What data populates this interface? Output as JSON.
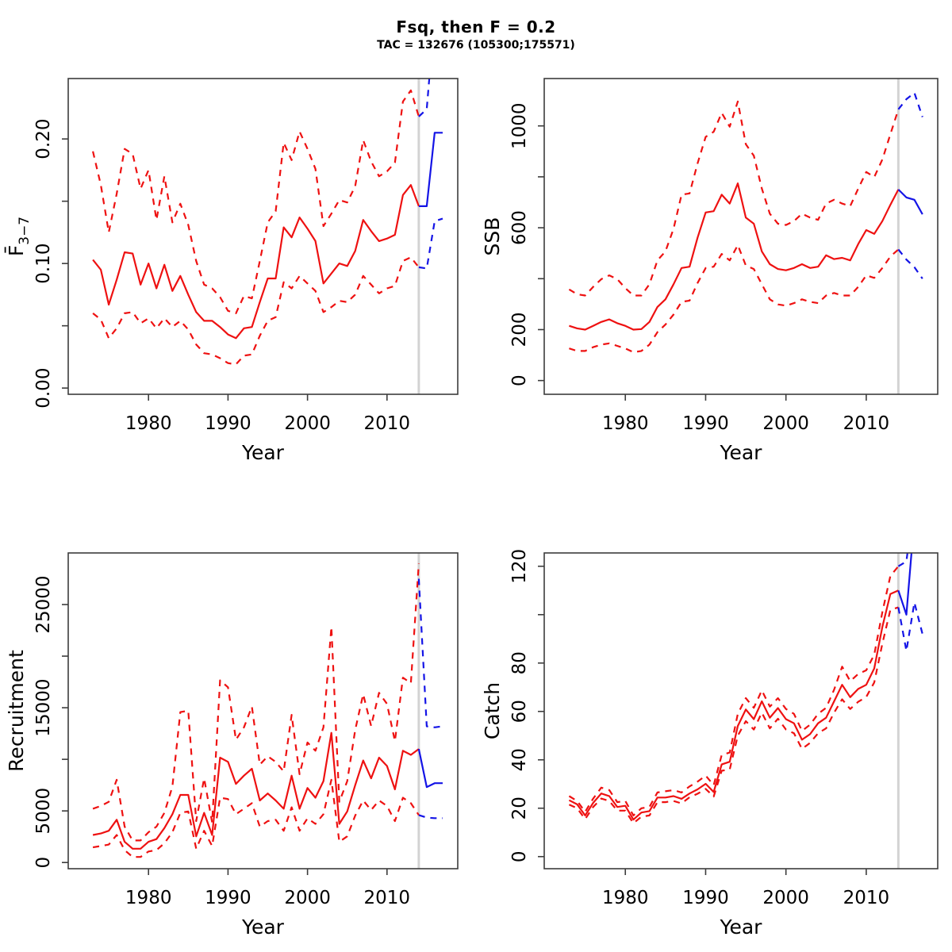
{
  "header": {
    "title": "Fsq, then F = 0.2",
    "subtitle": "TAC = 132676 (105300;175571)"
  },
  "colors": {
    "historic": "#ee1111",
    "projection": "#1414e6",
    "divider": "#d3d3d3",
    "frame": "#3c3c3c"
  },
  "chart_data": [
    {
      "key": "fbar",
      "type": "line",
      "xlabel": "Year",
      "ylabel": {
        "main": "F̄",
        "sub": "3−7"
      },
      "xlim": [
        1969.9,
        2018.9
      ],
      "ylim": [
        -0.005,
        0.2485
      ],
      "x_ticks": [
        1980,
        1990,
        2000,
        2010
      ],
      "y_ticks": [
        {
          "v": 0,
          "label": "0.00"
        },
        {
          "v": 0.05,
          "label": ""
        },
        {
          "v": 0.1,
          "label": "0.10"
        },
        {
          "v": 0.15,
          "label": ""
        },
        {
          "v": 0.2,
          "label": "0.20"
        }
      ],
      "divider_year": 2014,
      "historic": {
        "years_start": 1973,
        "median": [
          0.103,
          0.095,
          0.067,
          0.087,
          0.109,
          0.108,
          0.083,
          0.1,
          0.08,
          0.099,
          0.078,
          0.09,
          0.075,
          0.061,
          0.054,
          0.054,
          0.049,
          0.043,
          0.04,
          0.048,
          0.049,
          0.069,
          0.088,
          0.088,
          0.129,
          0.121,
          0.137,
          0.128,
          0.118,
          0.084,
          0.092,
          0.1,
          0.098,
          0.11,
          0.135,
          0.126,
          0.118,
          0.12,
          0.123,
          0.155,
          0.163,
          0.146
        ],
        "lower": [
          0.06,
          0.055,
          0.04,
          0.048,
          0.06,
          0.061,
          0.052,
          0.056,
          0.048,
          0.056,
          0.049,
          0.054,
          0.047,
          0.035,
          0.028,
          0.027,
          0.024,
          0.02,
          0.019,
          0.026,
          0.027,
          0.042,
          0.054,
          0.057,
          0.085,
          0.08,
          0.09,
          0.084,
          0.078,
          0.061,
          0.065,
          0.07,
          0.069,
          0.075,
          0.09,
          0.083,
          0.076,
          0.08,
          0.082,
          0.102,
          0.105,
          0.097
        ],
        "upper": [
          0.19,
          0.163,
          0.125,
          0.156,
          0.192,
          0.188,
          0.16,
          0.175,
          0.135,
          0.17,
          0.133,
          0.148,
          0.131,
          0.102,
          0.083,
          0.08,
          0.073,
          0.062,
          0.06,
          0.074,
          0.072,
          0.102,
          0.133,
          0.142,
          0.197,
          0.183,
          0.206,
          0.192,
          0.176,
          0.13,
          0.14,
          0.151,
          0.149,
          0.162,
          0.199,
          0.182,
          0.17,
          0.174,
          0.181,
          0.23,
          0.239,
          0.218
        ]
      },
      "projection": {
        "years_start": 2014,
        "median": [
          0.146,
          0.146,
          0.205,
          0.205
        ],
        "lower": [
          0.097,
          0.096,
          0.134,
          0.136
        ],
        "upper": [
          0.218,
          0.224,
          0.3,
          0.3
        ]
      }
    },
    {
      "key": "ssb",
      "type": "line",
      "xlabel": "Year",
      "ylabel": {
        "main": "SSB",
        "sub": ""
      },
      "xlim": [
        1969.9,
        2018.9
      ],
      "ylim": [
        -54,
        1186
      ],
      "x_ticks": [
        1980,
        1990,
        2000,
        2010
      ],
      "y_ticks": [
        {
          "v": 0,
          "label": "0"
        },
        {
          "v": 200,
          "label": "200"
        },
        {
          "v": 400,
          "label": ""
        },
        {
          "v": 600,
          "label": "600"
        },
        {
          "v": 800,
          "label": ""
        },
        {
          "v": 1000,
          "label": "1000"
        }
      ],
      "divider_year": 2014,
      "historic": {
        "years_start": 1973,
        "median": [
          215,
          205,
          200,
          215,
          230,
          240,
          225,
          215,
          200,
          202,
          230,
          289,
          319,
          378,
          442,
          447,
          561,
          660,
          665,
          730,
          695,
          774,
          640,
          616,
          507,
          457,
          438,
          433,
          442,
          457,
          442,
          447,
          492,
          477,
          482,
          472,
          536,
          591,
          576,
          626,
          690,
          750
        ],
        "lower": [
          126,
          116,
          116,
          131,
          141,
          146,
          136,
          126,
          111,
          116,
          141,
          190,
          220,
          259,
          309,
          314,
          383,
          442,
          447,
          497,
          472,
          532,
          452,
          438,
          378,
          319,
          299,
          294,
          304,
          319,
          309,
          304,
          334,
          344,
          334,
          334,
          368,
          413,
          403,
          442,
          487,
          515
        ],
        "upper": [
          358,
          339,
          334,
          368,
          398,
          413,
          398,
          363,
          334,
          334,
          378,
          472,
          507,
          596,
          730,
          735,
          853,
          957,
          977,
          1051,
          997,
          1096,
          928,
          883,
          754,
          655,
          616,
          611,
          626,
          655,
          640,
          631,
          695,
          710,
          695,
          685,
          754,
          819,
          799,
          868,
          967,
          1065
        ]
      },
      "projection": {
        "years_start": 2014,
        "median": [
          750,
          719,
          710,
          653
        ],
        "lower": [
          515,
          475,
          445,
          400
        ],
        "upper": [
          1065,
          1105,
          1130,
          1035
        ]
      }
    },
    {
      "key": "recruitment",
      "type": "line",
      "xlabel": "Year",
      "ylabel": {
        "main": "Recruitment",
        "sub": ""
      },
      "xlim": [
        1969.9,
        2018.9
      ],
      "ylim": [
        -600,
        30000
      ],
      "x_ticks": [
        1980,
        1990,
        2000,
        2010
      ],
      "y_ticks": [
        {
          "v": 0,
          "label": "0"
        },
        {
          "v": 5000,
          "label": "5000"
        },
        {
          "v": 10000,
          "label": ""
        },
        {
          "v": 15000,
          "label": "15000"
        },
        {
          "v": 20000,
          "label": ""
        },
        {
          "v": 25000,
          "label": "25000"
        }
      ],
      "divider_year": 2014,
      "historic": {
        "years_start": 1973,
        "median": [
          2670,
          2810,
          3075,
          4145,
          2005,
          1340,
          1340,
          2005,
          2270,
          3340,
          4680,
          6550,
          6550,
          2540,
          4815,
          2670,
          10160,
          9760,
          7620,
          8420,
          9090,
          6015,
          6685,
          6015,
          5215,
          8420,
          5215,
          7220,
          6285,
          7890,
          12570,
          3745,
          4950,
          7490,
          9890,
          8155,
          10160,
          9360,
          7090,
          10830,
          10430,
          11000
        ],
        "lower": [
          1470,
          1600,
          1740,
          2670,
          1200,
          540,
          540,
          1070,
          1200,
          1870,
          2940,
          4815,
          4950,
          1340,
          3075,
          1600,
          6285,
          6150,
          4680,
          5215,
          5750,
          3475,
          4010,
          4145,
          3075,
          5350,
          3075,
          4280,
          3745,
          4680,
          8020,
          2005,
          2540,
          4545,
          6015,
          5080,
          6015,
          5480,
          4010,
          6285,
          5750,
          4600
        ],
        "upper": [
          5215,
          5480,
          5880,
          8020,
          3475,
          2140,
          2140,
          2940,
          3475,
          4815,
          7355,
          14575,
          14710,
          4010,
          8155,
          3880,
          17650,
          16980,
          11900,
          13100,
          15110,
          9490,
          10295,
          9760,
          8825,
          14305,
          8555,
          11630,
          10830,
          13100,
          22840,
          5880,
          7890,
          12835,
          16310,
          13235,
          16445,
          15375,
          11765,
          17915,
          17380,
          29000
        ]
      },
      "projection": {
        "years_start": 2014,
        "median": [
          11000,
          7310,
          7690,
          7690
        ],
        "lower": [
          4600,
          4350,
          4300,
          4300
        ],
        "upper": [
          27500,
          13200,
          13100,
          13200
        ]
      }
    },
    {
      "key": "catch",
      "type": "line",
      "xlabel": "Year",
      "ylabel": {
        "main": "Catch",
        "sub": ""
      },
      "xlim": [
        1969.9,
        2018.9
      ],
      "ylim": [
        -5,
        125.5
      ],
      "x_ticks": [
        1980,
        1990,
        2000,
        2010
      ],
      "y_ticks": [
        {
          "v": 0,
          "label": "0"
        },
        {
          "v": 20,
          "label": "20"
        },
        {
          "v": 40,
          "label": "40"
        },
        {
          "v": 60,
          "label": "60"
        },
        {
          "v": 80,
          "label": "80"
        },
        {
          "v": 100,
          "label": ""
        },
        {
          "v": 120,
          "label": "120"
        }
      ],
      "divider_year": 2014,
      "historic": {
        "years_start": 1973,
        "median": [
          23.3,
          21.6,
          17.0,
          22.2,
          26.1,
          25.0,
          20.5,
          21.0,
          15.3,
          18.2,
          18.8,
          24.4,
          24.4,
          25.0,
          23.9,
          26.1,
          27.8,
          30.1,
          26.7,
          38.1,
          39.2,
          54.0,
          60.8,
          56.8,
          64.2,
          57.4,
          61.4,
          56.8,
          55.1,
          48.3,
          50.6,
          55.1,
          57.4,
          64.2,
          71.0,
          65.9,
          69.3,
          71.0,
          77.8,
          94.9,
          108.5,
          110.0
        ],
        "lower": [
          21.5,
          20.0,
          15.5,
          20.5,
          24.0,
          23.0,
          19.0,
          19.0,
          13.8,
          16.5,
          17.0,
          22.5,
          22.5,
          23.0,
          22.0,
          24.5,
          26.0,
          28.0,
          24.8,
          35.5,
          36.0,
          50.0,
          56.0,
          52.5,
          59.5,
          53.0,
          57.0,
          52.5,
          51.0,
          44.5,
          47.0,
          51.0,
          53.0,
          59.5,
          65.0,
          61.0,
          64.0,
          66.0,
          72.0,
          88.0,
          102.0,
          103.0
        ],
        "upper": [
          25.0,
          23.0,
          18.5,
          24.0,
          28.5,
          27.5,
          22.5,
          23.0,
          17.0,
          20.0,
          20.5,
          26.5,
          27.0,
          27.5,
          26.5,
          29.0,
          31.0,
          33.5,
          29.5,
          42.0,
          43.0,
          59.0,
          65.5,
          61.5,
          68.7,
          62.0,
          65.5,
          61.0,
          59.0,
          52.0,
          54.5,
          59.0,
          61.5,
          69.0,
          78.5,
          72.5,
          75.5,
          77.0,
          83.5,
          101.0,
          116.0,
          120.0
        ]
      },
      "projection": {
        "years_start": 2014,
        "median": [
          110,
          100,
          140,
          140
        ],
        "lower": [
          103,
          85,
          105,
          92
        ],
        "upper": [
          120,
          122,
          148,
          155
        ]
      }
    }
  ]
}
